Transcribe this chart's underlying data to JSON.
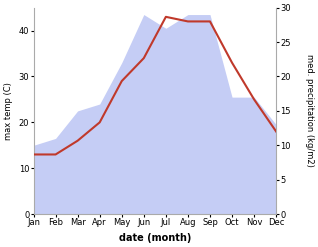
{
  "months": [
    "Jan",
    "Feb",
    "Mar",
    "Apr",
    "May",
    "Jun",
    "Jul",
    "Aug",
    "Sep",
    "Oct",
    "Nov",
    "Dec"
  ],
  "temp_data": [
    13,
    13,
    16,
    20,
    29,
    34,
    43,
    42,
    42,
    33,
    25,
    18
  ],
  "precip_data": [
    10,
    11,
    15,
    16,
    22,
    29,
    27,
    29,
    29,
    17,
    17,
    13
  ],
  "temp_color": "#c0392b",
  "precip_fill_color": "#c5cdf5",
  "temp_ylim": [
    0,
    45
  ],
  "precip_ylim": [
    0,
    30
  ],
  "temp_yticks": [
    0,
    10,
    20,
    30,
    40
  ],
  "precip_yticks": [
    0,
    5,
    10,
    15,
    20,
    25,
    30
  ],
  "ylabel_left": "max temp (C)",
  "ylabel_right": "med. precipitation (kg/m2)",
  "xlabel": "date (month)",
  "bg_color": "#ffffff",
  "fig_bg": "#ffffff",
  "line_width": 1.5,
  "label_fontsize": 6,
  "xlabel_fontsize": 7
}
